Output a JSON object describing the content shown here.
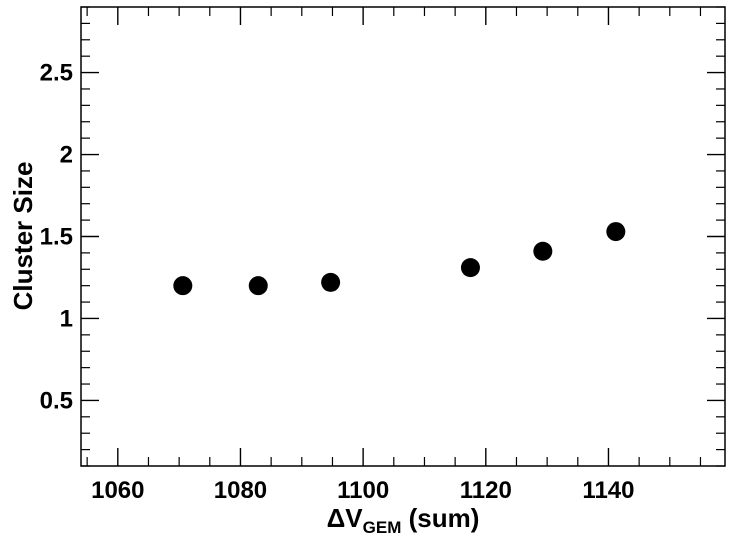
{
  "chart_data": {
    "type": "scatter",
    "title": "",
    "xlabel": {
      "prefix": "ΔV",
      "subscript": "GEM",
      "suffix": " (sum)"
    },
    "ylabel": "Cluster Size",
    "xlim": [
      1054,
      1159
    ],
    "ylim": [
      0.1,
      2.9
    ],
    "x_ticks": [
      1060,
      1080,
      1100,
      1120,
      1140
    ],
    "x_tick_labels": [
      "1060",
      "1080",
      "1100",
      "1120",
      "1140"
    ],
    "y_ticks": [
      0.5,
      1,
      1.5,
      2,
      2.5
    ],
    "y_tick_labels": [
      "0.5",
      "1",
      "1.5",
      "2",
      "2.5"
    ],
    "x_minor_step": 5,
    "y_minor_step": 0.1,
    "grid": false,
    "marker_color": "#000000",
    "series": [
      {
        "x": [
          1070.6,
          1082.9,
          1094.7,
          1117.5,
          1129.3,
          1141.2
        ],
        "y": [
          1.2,
          1.2,
          1.22,
          1.31,
          1.41,
          1.53
        ]
      }
    ]
  }
}
